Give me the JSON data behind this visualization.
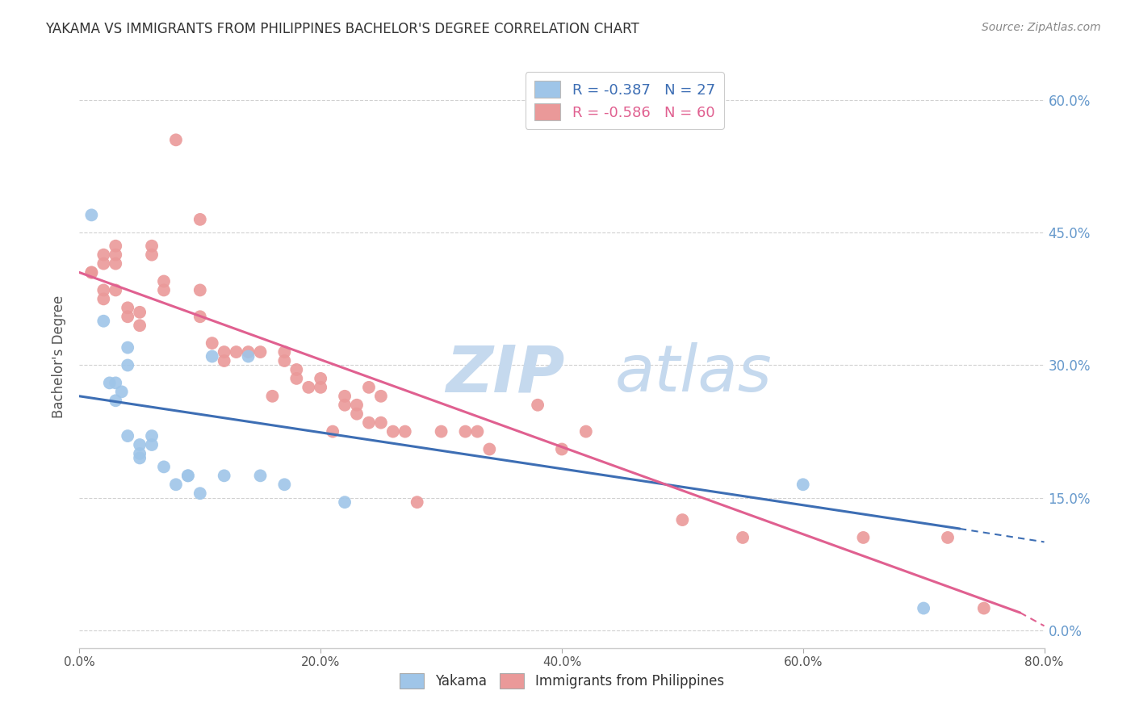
{
  "title": "YAKAMA VS IMMIGRANTS FROM PHILIPPINES BACHELOR'S DEGREE CORRELATION CHART",
  "source": "Source: ZipAtlas.com",
  "ylabel": "Bachelor's Degree",
  "xlabel_ticks": [
    "0.0%",
    "20.0%",
    "40.0%",
    "60.0%",
    "80.0%"
  ],
  "ylabel_ticks_right": [
    "60.0%",
    "45.0%",
    "30.0%",
    "15.0%",
    "0.0%"
  ],
  "xmin": 0.0,
  "xmax": 0.8,
  "ymin": -0.02,
  "ymax": 0.64,
  "ytick_vals": [
    0.0,
    0.15,
    0.3,
    0.45,
    0.6
  ],
  "xtick_vals": [
    0.0,
    0.2,
    0.4,
    0.6,
    0.8
  ],
  "yakama_scatter": [
    [
      0.01,
      0.47
    ],
    [
      0.02,
      0.35
    ],
    [
      0.025,
      0.28
    ],
    [
      0.03,
      0.28
    ],
    [
      0.03,
      0.26
    ],
    [
      0.035,
      0.27
    ],
    [
      0.04,
      0.32
    ],
    [
      0.04,
      0.3
    ],
    [
      0.04,
      0.22
    ],
    [
      0.05,
      0.21
    ],
    [
      0.05,
      0.2
    ],
    [
      0.05,
      0.195
    ],
    [
      0.06,
      0.22
    ],
    [
      0.06,
      0.21
    ],
    [
      0.07,
      0.185
    ],
    [
      0.08,
      0.165
    ],
    [
      0.09,
      0.175
    ],
    [
      0.09,
      0.175
    ],
    [
      0.1,
      0.155
    ],
    [
      0.11,
      0.31
    ],
    [
      0.12,
      0.175
    ],
    [
      0.14,
      0.31
    ],
    [
      0.15,
      0.175
    ],
    [
      0.17,
      0.165
    ],
    [
      0.22,
      0.145
    ],
    [
      0.6,
      0.165
    ],
    [
      0.7,
      0.025
    ]
  ],
  "philippines_scatter": [
    [
      0.01,
      0.405
    ],
    [
      0.01,
      0.405
    ],
    [
      0.02,
      0.425
    ],
    [
      0.02,
      0.415
    ],
    [
      0.02,
      0.385
    ],
    [
      0.02,
      0.375
    ],
    [
      0.03,
      0.435
    ],
    [
      0.03,
      0.425
    ],
    [
      0.03,
      0.415
    ],
    [
      0.03,
      0.385
    ],
    [
      0.04,
      0.365
    ],
    [
      0.04,
      0.355
    ],
    [
      0.05,
      0.36
    ],
    [
      0.05,
      0.345
    ],
    [
      0.06,
      0.435
    ],
    [
      0.06,
      0.425
    ],
    [
      0.07,
      0.395
    ],
    [
      0.07,
      0.385
    ],
    [
      0.08,
      0.555
    ],
    [
      0.1,
      0.465
    ],
    [
      0.1,
      0.385
    ],
    [
      0.1,
      0.355
    ],
    [
      0.11,
      0.325
    ],
    [
      0.12,
      0.315
    ],
    [
      0.12,
      0.305
    ],
    [
      0.13,
      0.315
    ],
    [
      0.14,
      0.315
    ],
    [
      0.15,
      0.315
    ],
    [
      0.16,
      0.265
    ],
    [
      0.17,
      0.315
    ],
    [
      0.17,
      0.305
    ],
    [
      0.18,
      0.295
    ],
    [
      0.18,
      0.285
    ],
    [
      0.19,
      0.275
    ],
    [
      0.2,
      0.285
    ],
    [
      0.2,
      0.275
    ],
    [
      0.21,
      0.225
    ],
    [
      0.22,
      0.265
    ],
    [
      0.22,
      0.255
    ],
    [
      0.23,
      0.255
    ],
    [
      0.23,
      0.245
    ],
    [
      0.24,
      0.275
    ],
    [
      0.24,
      0.235
    ],
    [
      0.25,
      0.265
    ],
    [
      0.25,
      0.235
    ],
    [
      0.26,
      0.225
    ],
    [
      0.27,
      0.225
    ],
    [
      0.28,
      0.145
    ],
    [
      0.3,
      0.225
    ],
    [
      0.32,
      0.225
    ],
    [
      0.33,
      0.225
    ],
    [
      0.34,
      0.205
    ],
    [
      0.38,
      0.255
    ],
    [
      0.4,
      0.205
    ],
    [
      0.42,
      0.225
    ],
    [
      0.5,
      0.125
    ],
    [
      0.55,
      0.105
    ],
    [
      0.65,
      0.105
    ],
    [
      0.72,
      0.105
    ],
    [
      0.75,
      0.025
    ]
  ],
  "yakama_line": {
    "x0": 0.0,
    "y0": 0.265,
    "x1": 0.73,
    "y1": 0.115
  },
  "yakama_line_dash": {
    "x0": 0.73,
    "y0": 0.115,
    "x1": 0.8,
    "y1": 0.1
  },
  "philippines_line": {
    "x0": 0.0,
    "y0": 0.405,
    "x1": 0.78,
    "y1": 0.02
  },
  "philippines_line_dash": {
    "x0": 0.78,
    "y0": 0.02,
    "x1": 0.8,
    "y1": 0.005
  },
  "blue_color": "#9fc5e8",
  "pink_color": "#ea9999",
  "blue_line_color": "#3d6eb4",
  "pink_line_color": "#e06090",
  "grid_color": "#cccccc",
  "right_axis_color": "#6699cc",
  "legend_text_color_dark": "#222222",
  "legend_r_color_blue": "#3d6eb4",
  "legend_r_color_pink": "#e06090",
  "background_color": "#ffffff",
  "watermark_zip_color": "#c5d9ee",
  "watermark_atlas_color": "#c5d9ee"
}
